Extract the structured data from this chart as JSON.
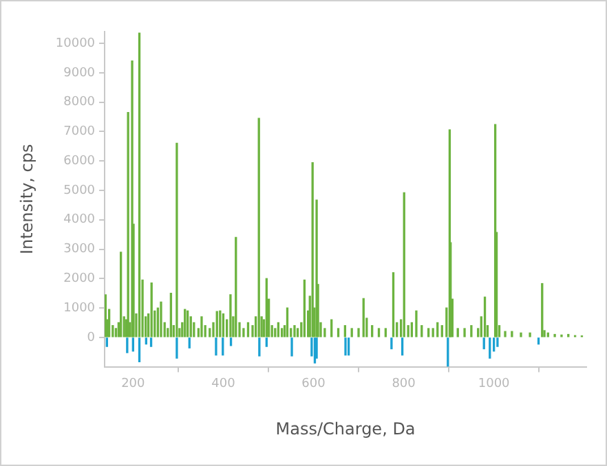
{
  "chart_data": {
    "type": "bar",
    "xlabel": "Mass/Charge, Da",
    "ylabel": "Intensity, cps",
    "xlim": [
      137,
      1205
    ],
    "xticks": [
      200,
      400,
      600,
      800,
      1000
    ],
    "ylim": [
      -1000,
      10400
    ],
    "yticks": [
      0,
      1000,
      2000,
      3000,
      4000,
      5000,
      6000,
      7000,
      8000,
      9000,
      10000
    ],
    "grid": false,
    "legend": false,
    "series": [
      {
        "color": "#6cb33f",
        "x": [
          139,
          143,
          147,
          155,
          162,
          168,
          173,
          180,
          185,
          189,
          193,
          198,
          201,
          207,
          214,
          221,
          228,
          234,
          241,
          248,
          255,
          262,
          270,
          277,
          284,
          290,
          297,
          303,
          309,
          315,
          321,
          328,
          335,
          345,
          352,
          360,
          370,
          378,
          386,
          393,
          400,
          408,
          416,
          422,
          428,
          436,
          445,
          455,
          465,
          472,
          479,
          485,
          490,
          496,
          501,
          508,
          515,
          522,
          530,
          536,
          542,
          550,
          558,
          565,
          573,
          580,
          588,
          592,
          598,
          602,
          607,
          610,
          616,
          625,
          640,
          655,
          670,
          685,
          700,
          711,
          718,
          730,
          745,
          760,
          777,
          785,
          794,
          801,
          810,
          818,
          828,
          840,
          855,
          865,
          875,
          885,
          895,
          902,
          904,
          908,
          920,
          935,
          950,
          965,
          972,
          980,
          986,
          1003,
          1006,
          1012,
          1025,
          1040,
          1060,
          1080,
          1107,
          1112,
          1120,
          1135,
          1150,
          1165,
          1180,
          1195
        ],
        "values": [
          1450,
          600,
          950,
          400,
          300,
          500,
          2900,
          700,
          600,
          7650,
          500,
          9400,
          3850,
          800,
          10350,
          1950,
          700,
          800,
          1850,
          900,
          1000,
          1200,
          500,
          300,
          1500,
          400,
          6600,
          300,
          500,
          950,
          900,
          700,
          500,
          300,
          700,
          400,
          300,
          500,
          880,
          900,
          800,
          600,
          1450,
          700,
          3400,
          500,
          300,
          500,
          400,
          700,
          7450,
          700,
          600,
          2000,
          1300,
          400,
          300,
          500,
          300,
          400,
          1000,
          300,
          400,
          300,
          500,
          1950,
          900,
          1400,
          5940,
          1000,
          4670,
          1800,
          500,
          300,
          600,
          300,
          400,
          300,
          300,
          1320,
          650,
          400,
          300,
          300,
          2200,
          500,
          600,
          4920,
          400,
          500,
          900,
          400,
          300,
          300,
          500,
          400,
          1000,
          7060,
          3220,
          1300,
          300,
          300,
          400,
          300,
          700,
          1370,
          400,
          7240,
          3570,
          400,
          200,
          200,
          150,
          150,
          1830,
          230,
          150,
          100,
          80,
          100,
          60,
          50
        ]
      },
      {
        "color": "#1ba1d3",
        "x": [
          142,
          187,
          200,
          214,
          229,
          240,
          297,
          325,
          384,
          399,
          417,
          480,
          496,
          552,
          596,
          603,
          607,
          671,
          678,
          773,
          797,
          898,
          978,
          991,
          1000,
          1008,
          1099
        ],
        "values": [
          -310,
          -520,
          -470,
          -830,
          -230,
          -310,
          -710,
          -360,
          -600,
          -600,
          -280,
          -630,
          -310,
          -630,
          -630,
          -870,
          -710,
          -600,
          -600,
          -390,
          -600,
          -990,
          -390,
          -710,
          -470,
          -310,
          -230
        ]
      }
    ]
  }
}
